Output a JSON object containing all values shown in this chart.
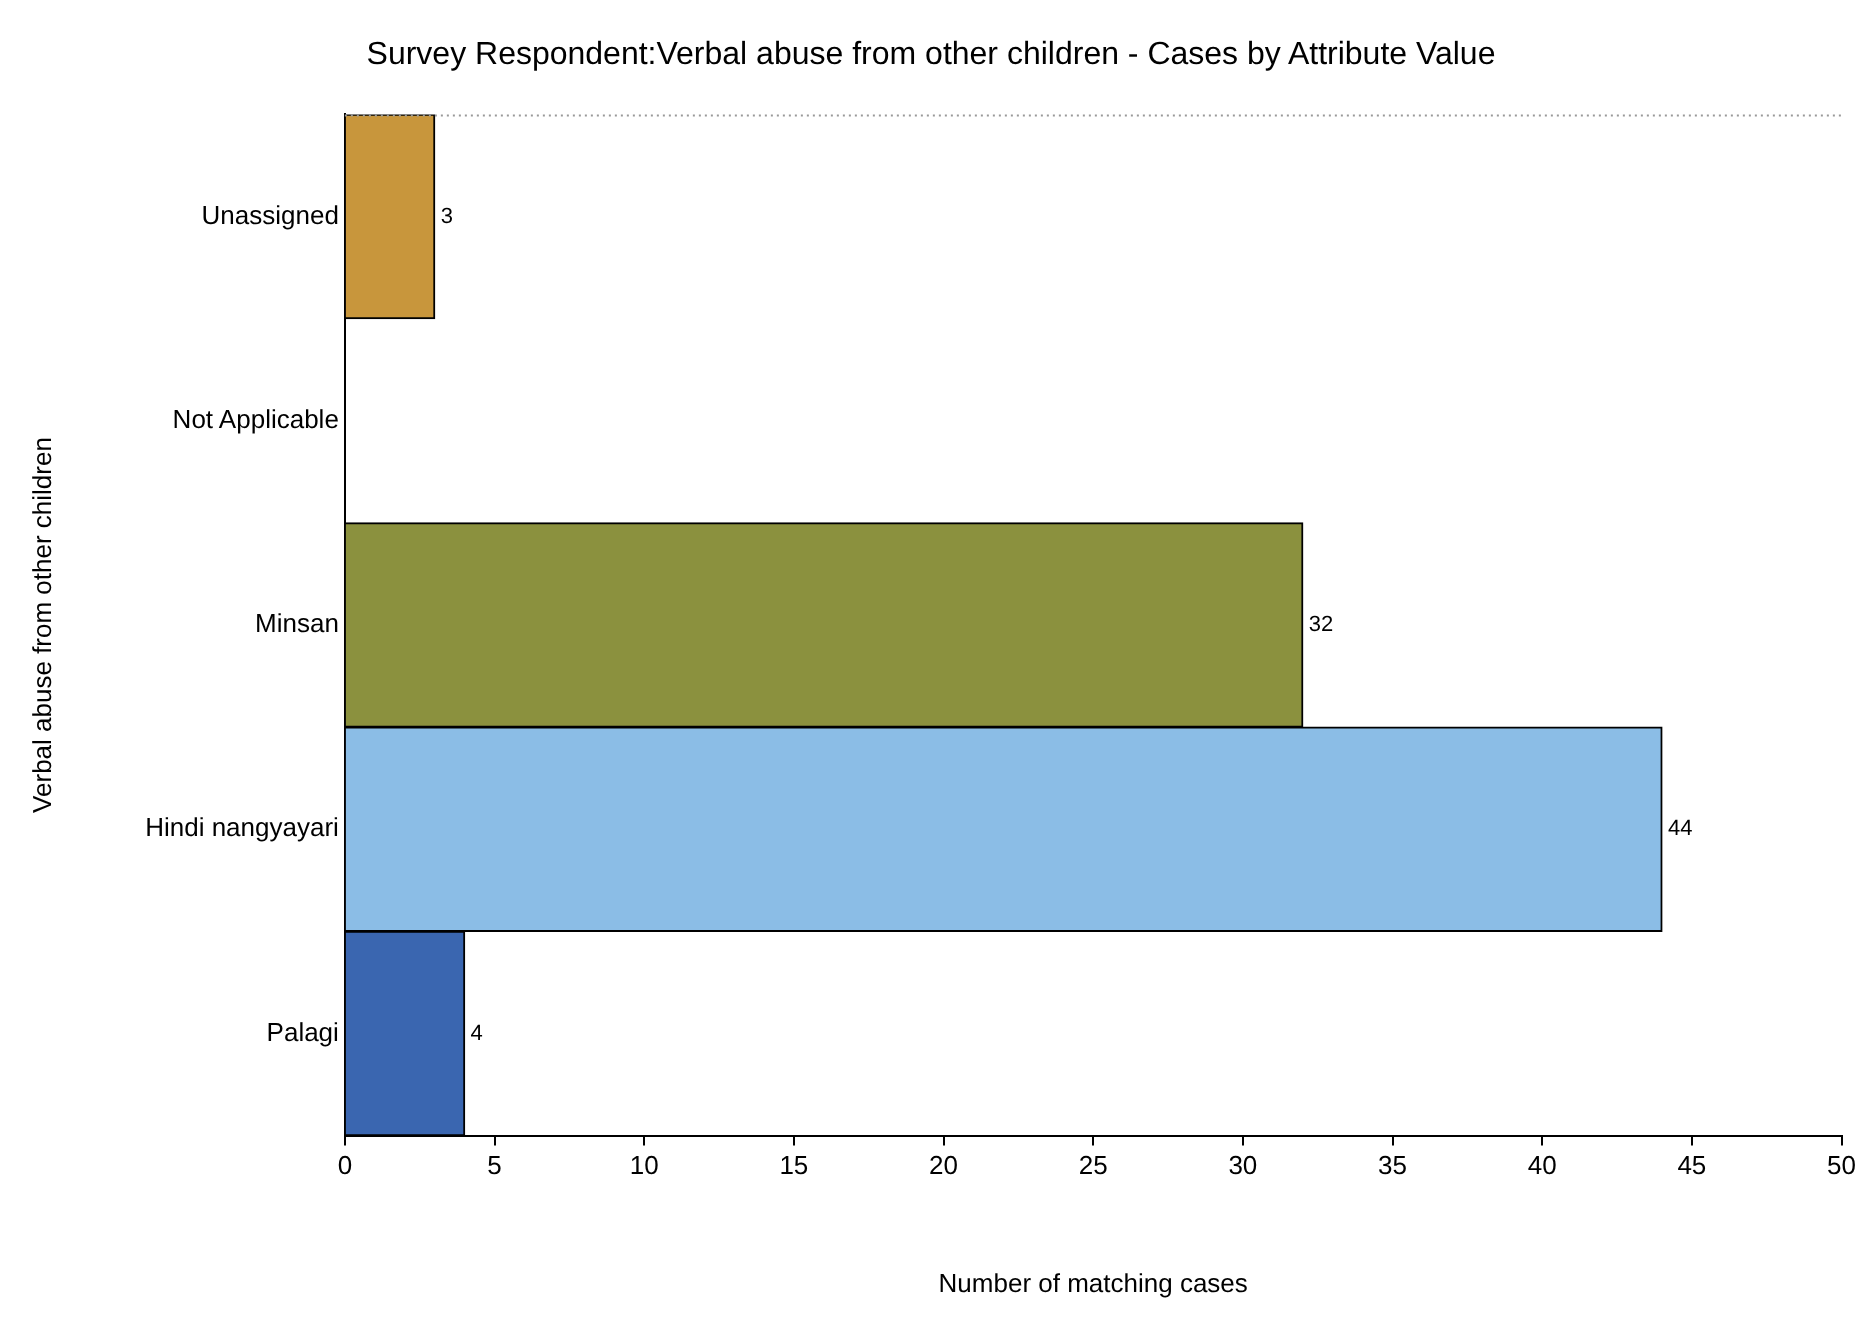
{
  "chart_data": {
    "type": "bar",
    "orientation": "horizontal",
    "title": "Survey Respondent:Verbal abuse from other children - Cases by Attribute Value",
    "xlabel": "Number of matching cases",
    "ylabel": "Verbal abuse from other children",
    "categories": [
      "Unassigned",
      "Not Applicable",
      "Minsan",
      "Hindi nangyayari",
      "Palagi"
    ],
    "values": [
      3,
      0,
      32,
      44,
      4
    ],
    "colors": [
      "#c8963c",
      "#8e6fb0",
      "#8b913e",
      "#8bbde6",
      "#3a66b0"
    ],
    "value_labels": [
      "3",
      null,
      "32",
      "44",
      "4"
    ],
    "xlim": [
      0,
      50
    ],
    "xticks": [
      0,
      5,
      10,
      15,
      20,
      25,
      30,
      35,
      40,
      45,
      50
    ],
    "grid": false,
    "legend": false
  }
}
